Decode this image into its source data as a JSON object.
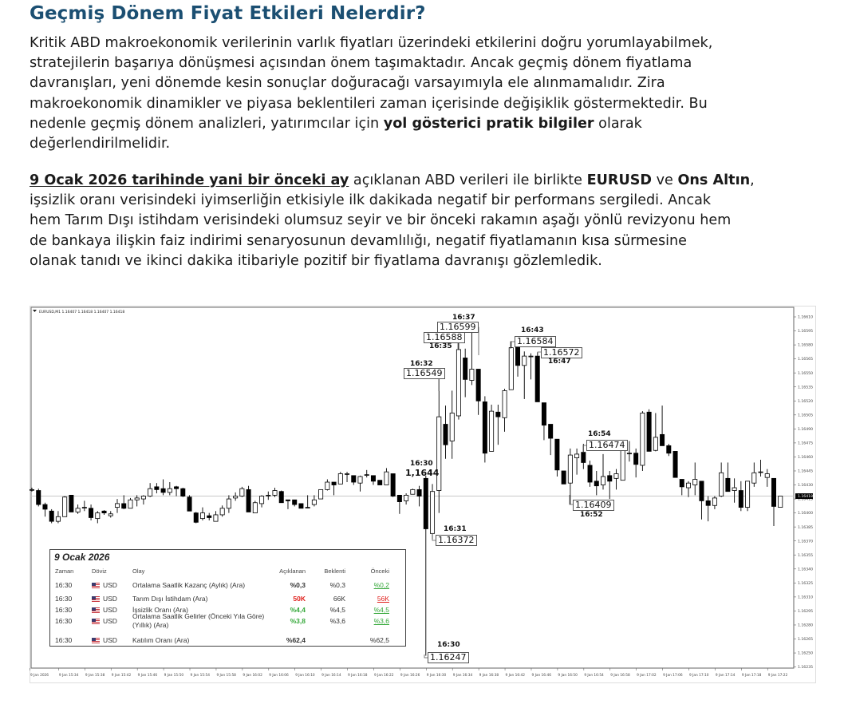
{
  "article": {
    "title": "Geçmiş Dönem Fiyat Etkileri Nelerdir?",
    "paragraph1": [
      [
        {
          "t": "Kritik ABD makroekonomik verilerinin varlık fiyatları üzerindeki etkilerini doğru yorumlayabilmek,"
        }
      ],
      [
        {
          "t": "stratejilerin başarıya dönüşmesi açısından önem taşımaktadır. Ancak geçmiş dönem fiyatlama"
        }
      ],
      [
        {
          "t": "davranışları, yeni dönemde kesin sonuçlar doğuracağı varsayımıyla ele alınmamalıdır. Zira"
        }
      ],
      [
        {
          "t": "makroekonomik dinamikler ve piyasa beklentileri zaman içerisinde değişiklik göstermektedir. Bu"
        }
      ],
      [
        {
          "t": "nedenle geçmiş dönem analizleri, yatırımcılar için "
        },
        {
          "t": "yol gösterici pratik bilgiler",
          "s": "b"
        },
        {
          "t": " olarak"
        }
      ],
      [
        {
          "t": "değerlendirilmelidir."
        }
      ]
    ],
    "paragraph2": [
      [
        {
          "t": "9 Ocak 2026 tarihinde yani bir önceki ay",
          "s": "u"
        },
        {
          "t": " açıklanan ABD verileri ile birlikte "
        },
        {
          "t": "EURUSD",
          "s": "b"
        },
        {
          "t": " ve "
        },
        {
          "t": "Ons Altın",
          "s": "b"
        },
        {
          "t": ","
        }
      ],
      [
        {
          "t": "işsizlik oranı verisindeki iyimserliğin etkisiyle ilk dakikada negatif bir performans sergiledi. Ancak"
        }
      ],
      [
        {
          "t": "hem Tarım Dışı istihdam verisindeki olumsuz seyir ve bir önceki rakamın aşağı yönlü revizyonu hem"
        }
      ],
      [
        {
          "t": "de bankaya ilişkin faiz indirimi senaryosunun devamlılığı, negatif fiyatlamanın kısa sürmesine"
        }
      ],
      [
        {
          "t": "olanak tanıdı ve ikinci dakika itibariyle pozitif bir fiyatlama davranışı gözlemledik."
        }
      ]
    ]
  },
  "chart_data": {
    "type": "candlestick",
    "header": "EURUSD,M1  1.16407 1.16418 1.16407 1.16418",
    "current_price": "1.16418",
    "colors": {
      "up": "#ffffff",
      "down": "#000000",
      "outline": "#000000",
      "price_line": "#c0c0c0"
    },
    "ylim": [
      1.16228,
      1.16618
    ],
    "y_ticks": [
      "1.16610",
      "1.16595",
      "1.16580",
      "1.16565",
      "1.16550",
      "1.16535",
      "1.16520",
      "1.16505",
      "1.16490",
      "1.16475",
      "1.16460",
      "1.16445",
      "1.16430",
      "1.16415",
      "1.16400",
      "1.16385",
      "1.16370",
      "1.16355",
      "1.16340",
      "1.16325",
      "1.16310",
      "1.16295",
      "1.16280",
      "1.16265",
      "1.16250",
      "1.16235"
    ],
    "x_ticks": [
      "9 Jan 2026",
      "9 Jan 15:34",
      "9 Jan 15:38",
      "9 Jan 15:42",
      "9 Jan 15:46",
      "9 Jan 15:50",
      "9 Jan 15:54",
      "9 Jan 15:58",
      "9 Jan 16:02",
      "9 Jan 16:06",
      "9 Jan 16:10",
      "9 Jan 16:14",
      "9 Jan 16:18",
      "9 Jan 16:22",
      "9 Jan 16:26",
      "9 Jan 16:30",
      "9 Jan 16:34",
      "9 Jan 16:38",
      "9 Jan 16:42",
      "9 Jan 16:46",
      "9 Jan 16:50",
      "9 Jan 16:54",
      "9 Jan 16:58",
      "9 Jan 17:02",
      "9 Jan 17:06",
      "9 Jan 17:10",
      "9 Jan 17:14",
      "9 Jan 17:18",
      "9 Jan 17:22"
    ],
    "candles_ohlc": [
      [
        1.16425,
        1.16427,
        1.16423,
        1.16425
      ],
      [
        1.16424,
        1.16426,
        1.16407,
        1.16409
      ],
      [
        1.16409,
        1.16411,
        1.16396,
        1.16404
      ],
      [
        1.16402,
        1.16404,
        1.16389,
        1.16391
      ],
      [
        1.16391,
        1.16402,
        1.16389,
        1.16396
      ],
      [
        1.16396,
        1.16418,
        1.16396,
        1.16417
      ],
      [
        1.16419,
        1.16419,
        1.16401,
        1.16401
      ],
      [
        1.16401,
        1.16409,
        1.16399,
        1.16405
      ],
      [
        1.16406,
        1.16413,
        1.16402,
        1.16406
      ],
      [
        1.16405,
        1.16409,
        1.16392,
        1.16395
      ],
      [
        1.16394,
        1.16402,
        1.16389,
        1.164
      ],
      [
        1.16402,
        1.16403,
        1.16398,
        1.164
      ],
      [
        1.16397,
        1.16402,
        1.16395,
        1.16399
      ],
      [
        1.16406,
        1.16415,
        1.164,
        1.1641
      ],
      [
        1.1641,
        1.16419,
        1.16404,
        1.16405
      ],
      [
        1.16405,
        1.16416,
        1.16405,
        1.16414
      ],
      [
        1.16414,
        1.16419,
        1.16407,
        1.16416
      ],
      [
        1.16415,
        1.16419,
        1.16409,
        1.16418
      ],
      [
        1.16418,
        1.16432,
        1.16417,
        1.16426
      ],
      [
        1.16428,
        1.16432,
        1.16421,
        1.16425
      ],
      [
        1.16426,
        1.16436,
        1.16419,
        1.16422
      ],
      [
        1.16422,
        1.16433,
        1.16419,
        1.16426
      ],
      [
        1.16428,
        1.16429,
        1.16418,
        1.16426
      ],
      [
        1.16426,
        1.16427,
        1.16417,
        1.16418
      ],
      [
        1.16417,
        1.16419,
        1.16402,
        1.16402
      ],
      [
        1.164,
        1.16401,
        1.16389,
        1.1639
      ],
      [
        1.16394,
        1.16406,
        1.16392,
        1.164
      ],
      [
        1.16397,
        1.164,
        1.16392,
        1.16395
      ],
      [
        1.16391,
        1.16402,
        1.16391,
        1.16398
      ],
      [
        1.16398,
        1.16408,
        1.16396,
        1.16405
      ],
      [
        1.16405,
        1.16419,
        1.164,
        1.16415
      ],
      [
        1.16416,
        1.16422,
        1.16413,
        1.16418
      ],
      [
        1.16418,
        1.16428,
        1.16417,
        1.16426
      ],
      [
        1.16425,
        1.16429,
        1.16401,
        1.16401
      ],
      [
        1.164,
        1.16413,
        1.164,
        1.16411
      ],
      [
        1.1641,
        1.16419,
        1.16406,
        1.16418
      ],
      [
        1.16419,
        1.16423,
        1.16414,
        1.16419
      ],
      [
        1.16419,
        1.16427,
        1.16417,
        1.16424
      ],
      [
        1.16423,
        1.16424,
        1.16411,
        1.16411
      ],
      [
        1.16414,
        1.16414,
        1.16404,
        1.16413
      ],
      [
        1.16414,
        1.16414,
        1.16407,
        1.16409
      ],
      [
        1.1641,
        1.1641,
        1.16405,
        1.16405
      ],
      [
        1.16406,
        1.16419,
        1.16405,
        1.16406
      ],
      [
        1.16409,
        1.16419,
        1.16407,
        1.16414
      ],
      [
        1.16415,
        1.16425,
        1.16415,
        1.16425
      ],
      [
        1.16425,
        1.16436,
        1.16424,
        1.16433
      ],
      [
        1.16433,
        1.16433,
        1.16419,
        1.1643
      ],
      [
        1.16431,
        1.16444,
        1.16431,
        1.16442
      ],
      [
        1.16442,
        1.16444,
        1.16433,
        1.16442
      ],
      [
        1.1644,
        1.1644,
        1.1643,
        1.16433
      ],
      [
        1.16432,
        1.1644,
        1.16423,
        1.16439
      ],
      [
        1.16441,
        1.16446,
        1.16438,
        1.16441
      ],
      [
        1.1644,
        1.1644,
        1.1643,
        1.16434
      ],
      [
        1.16435,
        1.16435,
        1.1643,
        1.1643
      ],
      [
        1.1643,
        1.16448,
        1.1643,
        1.16444
      ],
      [
        1.16442,
        1.16442,
        1.16417,
        1.16418
      ],
      [
        1.16419,
        1.16419,
        1.16399,
        1.16412
      ],
      [
        1.16413,
        1.16421,
        1.16409,
        1.16419
      ],
      [
        1.1642,
        1.16426,
        1.1642,
        1.16425
      ],
      [
        1.16425,
        1.16429,
        1.16407,
        1.16418
      ],
      [
        1.16437,
        1.1644,
        1.16247,
        1.16383
      ],
      [
        1.16378,
        1.16431,
        1.16372,
        1.16423
      ],
      [
        1.16424,
        1.16549,
        1.164,
        1.16503
      ],
      [
        1.16495,
        1.16515,
        1.16458,
        1.16473
      ],
      [
        1.16477,
        1.16531,
        1.16458,
        1.16507
      ],
      [
        1.16504,
        1.16588,
        1.165,
        1.16575
      ],
      [
        1.16566,
        1.16576,
        1.16524,
        1.16543
      ],
      [
        1.16542,
        1.16599,
        1.16537,
        1.16554
      ],
      [
        1.16554,
        1.16554,
        1.16505,
        1.1652
      ],
      [
        1.16519,
        1.16525,
        1.16454,
        1.16464
      ],
      [
        1.16466,
        1.16516,
        1.16466,
        1.16509
      ],
      [
        1.16508,
        1.16516,
        1.16473,
        1.16503
      ],
      [
        1.16502,
        1.16533,
        1.16487,
        1.16531
      ],
      [
        1.16532,
        1.16584,
        1.16532,
        1.16577
      ],
      [
        1.16578,
        1.16582,
        1.16546,
        1.16558
      ],
      [
        1.16558,
        1.16573,
        1.16522,
        1.16568
      ],
      [
        1.16568,
        1.16571,
        1.16543,
        1.16568
      ],
      [
        1.16568,
        1.16572,
        1.16519,
        1.16519
      ],
      [
        1.16518,
        1.16518,
        1.16478,
        1.16494
      ],
      [
        1.16495,
        1.16495,
        1.16462,
        1.1648
      ],
      [
        1.16479,
        1.16479,
        1.16439,
        1.16446
      ],
      [
        1.16445,
        1.16445,
        1.16431,
        1.16431
      ],
      [
        1.16432,
        1.16469,
        1.16409,
        1.16462
      ],
      [
        1.16459,
        1.16469,
        1.16441,
        1.16463
      ],
      [
        1.16465,
        1.16474,
        1.16447,
        1.16454
      ],
      [
        1.16451,
        1.16456,
        1.16428,
        1.16433
      ],
      [
        1.16434,
        1.16445,
        1.16419,
        1.16429
      ],
      [
        1.1643,
        1.16463,
        1.16425,
        1.16439
      ],
      [
        1.1644,
        1.16445,
        1.16415,
        1.16434
      ],
      [
        1.16437,
        1.16447,
        1.16425,
        1.16442
      ],
      [
        1.16435,
        1.16477,
        1.16435,
        1.16473
      ],
      [
        1.16464,
        1.16477,
        1.16455,
        1.16464
      ],
      [
        1.16464,
        1.16469,
        1.16438,
        1.16452
      ],
      [
        1.16451,
        1.16509,
        1.16445,
        1.16507
      ],
      [
        1.16508,
        1.16511,
        1.16466,
        1.16466
      ],
      [
        1.16467,
        1.16507,
        1.16466,
        1.16481
      ],
      [
        1.16484,
        1.16515,
        1.16472,
        1.16472
      ],
      [
        1.16472,
        1.16474,
        1.16461,
        1.16464
      ],
      [
        1.16466,
        1.16466,
        1.16438,
        1.16438
      ],
      [
        1.16436,
        1.16436,
        1.16419,
        1.16428
      ],
      [
        1.16427,
        1.16434,
        1.16417,
        1.16432
      ],
      [
        1.1643,
        1.16454,
        1.16419,
        1.16436
      ],
      [
        1.16434,
        1.16434,
        1.16393,
        1.16413
      ],
      [
        1.16413,
        1.16418,
        1.16391,
        1.16408
      ],
      [
        1.16408,
        1.16418,
        1.16404,
        1.16416
      ],
      [
        1.16418,
        1.16454,
        1.16417,
        1.16443
      ],
      [
        1.16437,
        1.16454,
        1.16423,
        1.16423
      ],
      [
        1.16424,
        1.16437,
        1.16411,
        1.16427
      ],
      [
        1.16424,
        1.16434,
        1.16402,
        1.16406
      ],
      [
        1.16406,
        1.16434,
        1.16402,
        1.16434
      ],
      [
        1.16432,
        1.16454,
        1.16428,
        1.16443
      ],
      [
        1.16444,
        1.16457,
        1.16439,
        1.16444
      ],
      [
        1.16438,
        1.16447,
        1.16428,
        1.16442
      ],
      [
        1.16437,
        1.16437,
        1.16386,
        1.16407
      ],
      [
        1.16406,
        1.16418,
        1.16406,
        1.16418
      ]
    ],
    "annotations": [
      {
        "time": "16:37",
        "price": "1.16599"
      },
      {
        "time": "16:35",
        "price": "1.16588"
      },
      {
        "time": "16:32",
        "price": "1.16549"
      },
      {
        "time": "16:43",
        "price": "1.16584"
      },
      {
        "time": "16:47",
        "price": "1.16572"
      },
      {
        "time": "16:30",
        "price": "1,1644"
      },
      {
        "time": "16:31",
        "price": "1.16372"
      },
      {
        "time": "16:54",
        "price": "1.16474"
      },
      {
        "time": "16:52",
        "price": "1.16409"
      },
      {
        "time": "16:30",
        "price": "1.16247"
      }
    ]
  },
  "calendar": {
    "date": "9 Ocak 2026",
    "headers": [
      "Zaman",
      "Döviz",
      "Olay",
      "Açıklanan",
      "Beklenti",
      "Önceki"
    ],
    "rows": [
      {
        "time": "16:30",
        "currency": "USD",
        "event": "Ortalama Saatlik Kazanç (Aylık) (Ara)",
        "actual": "%0,3",
        "forecast": "%0,3",
        "previous": "%0,2",
        "actual_color": "neutral",
        "previous_color": "green"
      },
      {
        "time": "16:30",
        "currency": "USD",
        "event": "Tarım Dışı İstihdam  (Ara)",
        "actual": "50K",
        "forecast": "66K",
        "previous": "56K",
        "actual_color": "red",
        "previous_color": "red"
      },
      {
        "time": "16:30",
        "currency": "USD",
        "event": "İşsizlik Oranı  (Ara)",
        "actual": "%4,4",
        "forecast": "%4,5",
        "previous": "%4,5",
        "actual_color": "green",
        "previous_color": "green"
      },
      {
        "time": "16:30",
        "currency": "USD",
        "event": "Ortalama Saatlik Gelirler (Önceki Yıla Göre)",
        "event2": "(Yıllık) (Ara)",
        "actual": "%3,8",
        "forecast": "%3,6",
        "previous": "%3,6",
        "actual_color": "green",
        "previous_color": "green"
      },
      {
        "time": "16:30",
        "currency": "USD",
        "event": "Katılım Oranı  (Ara)",
        "actual": "%62,4",
        "forecast": "",
        "previous": "%62,5",
        "actual_color": "neutral",
        "previous_color": "neutral"
      }
    ]
  }
}
